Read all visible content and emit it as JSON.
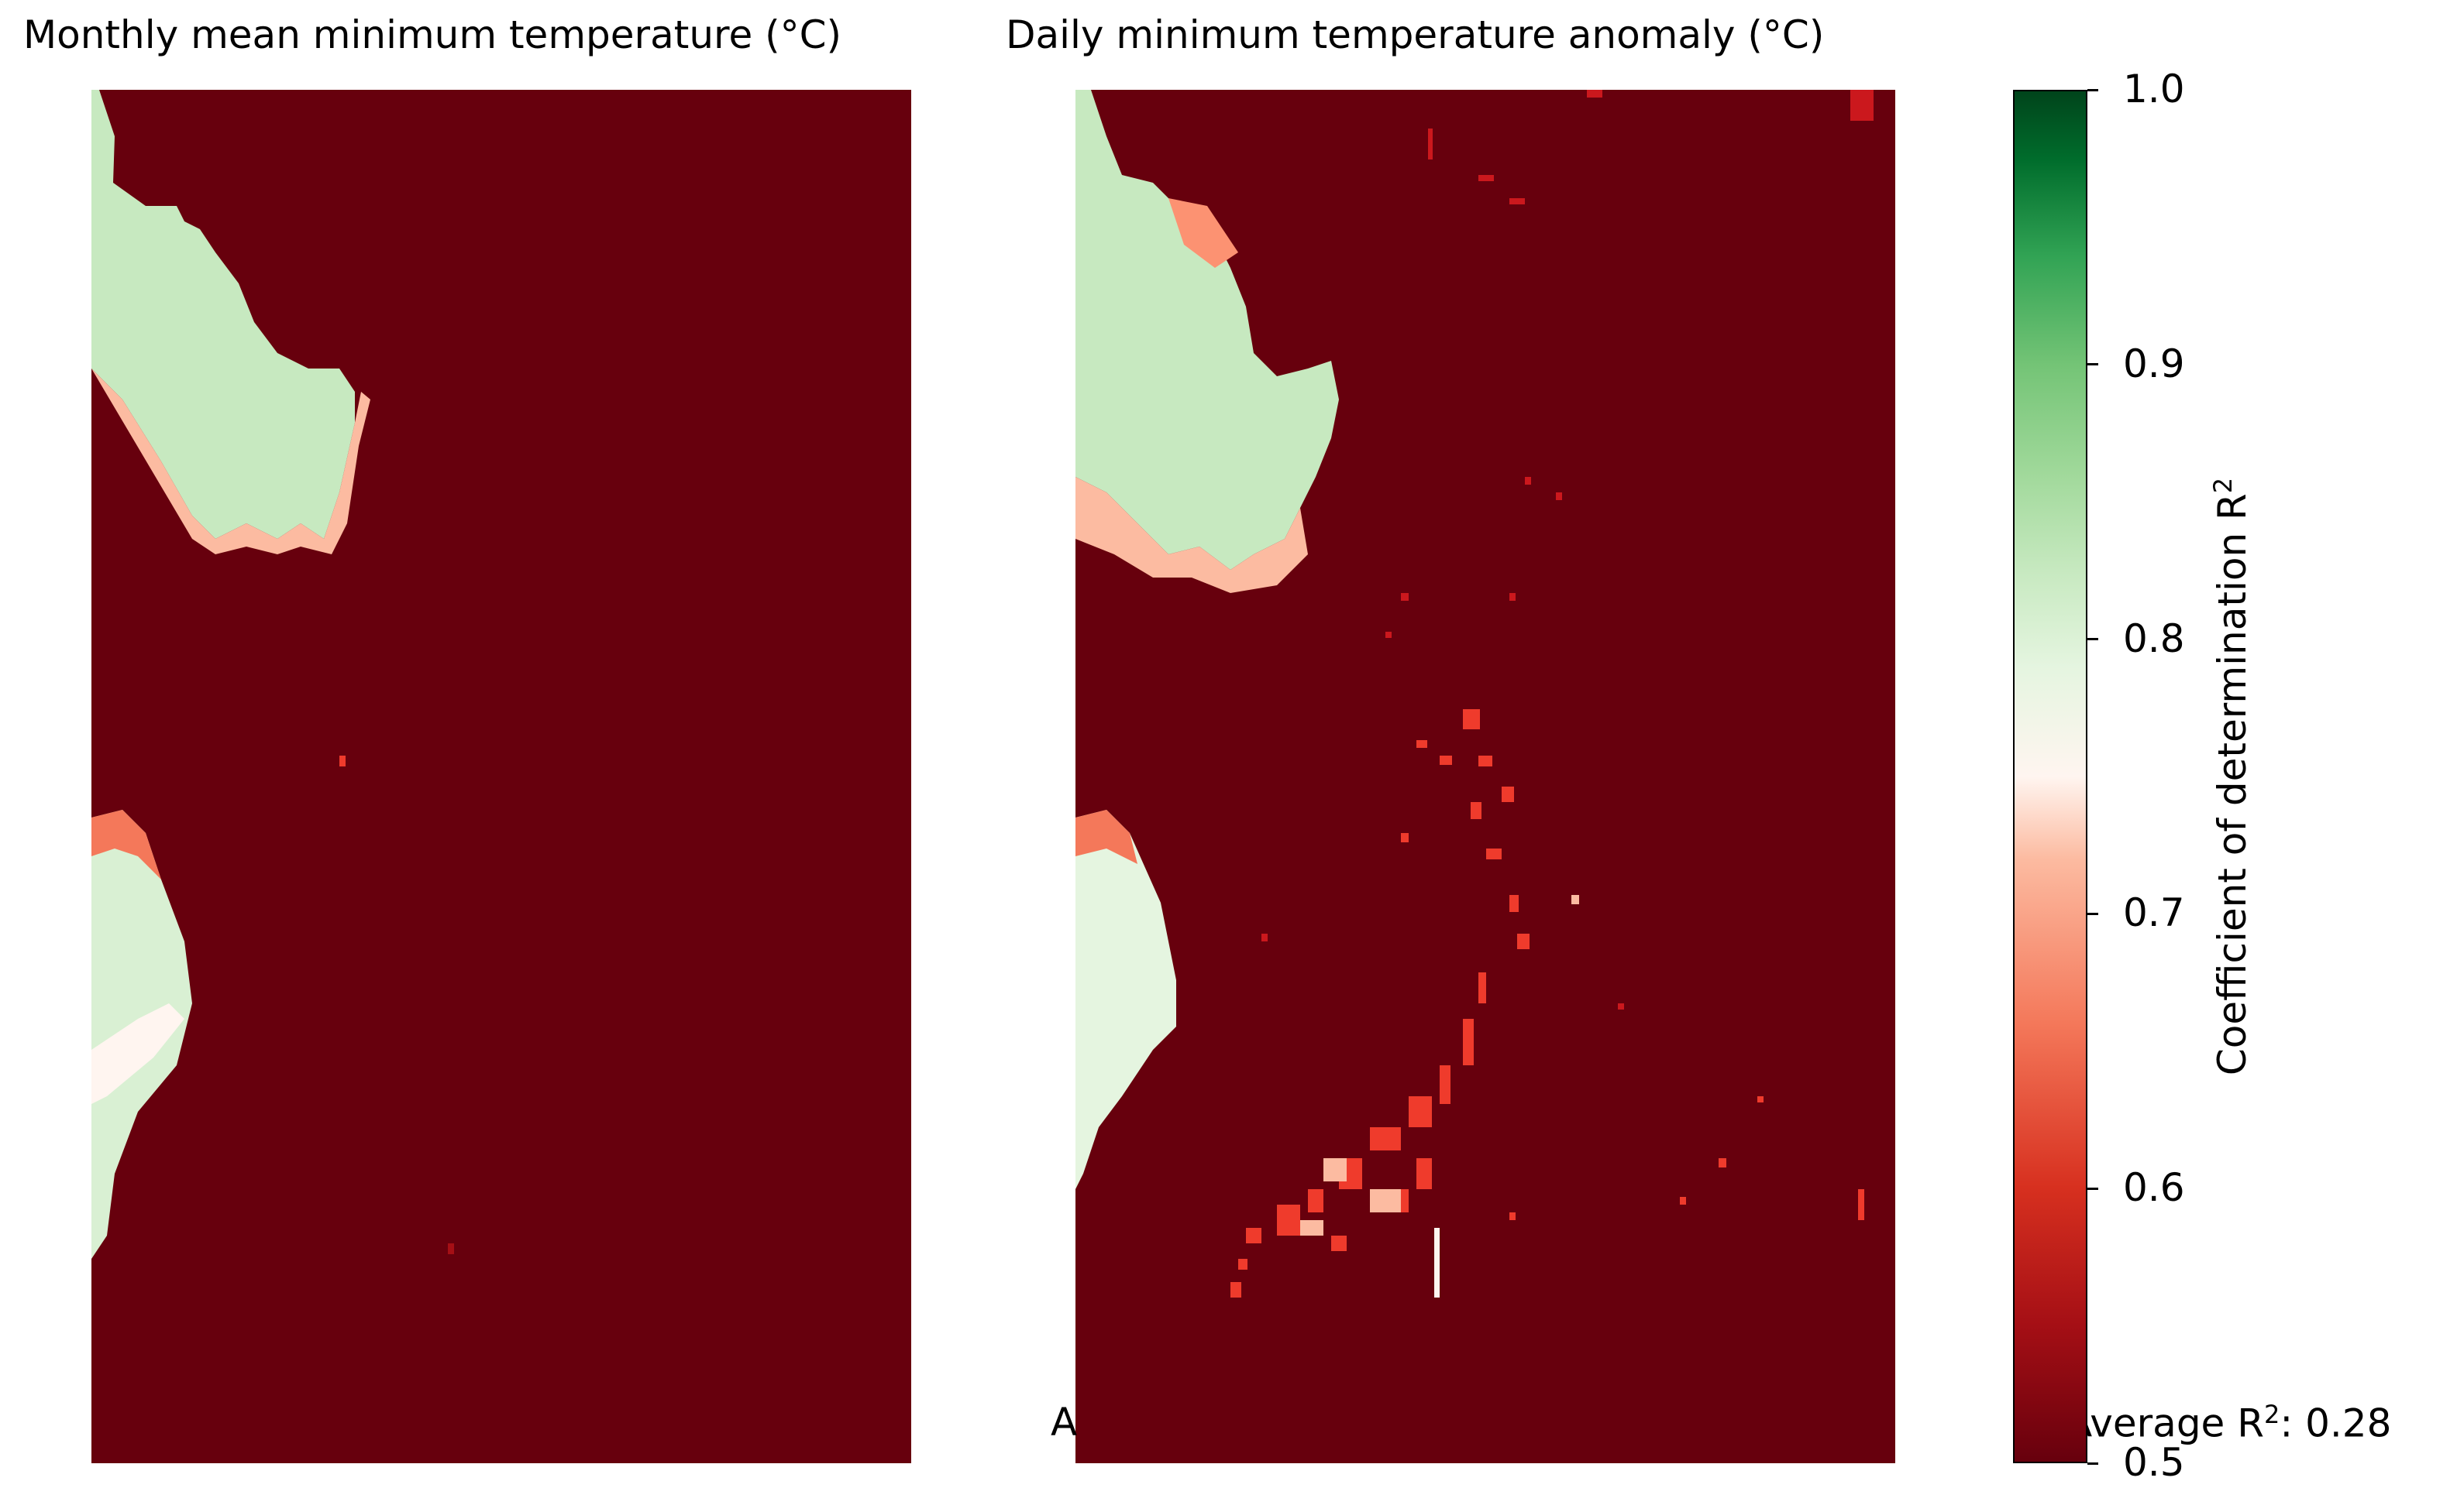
{
  "chart_data": [
    {
      "type": "heatmap",
      "title": "Monthly mean minimum temperature (°C)",
      "colorbar_shared": true
    },
    {
      "type": "heatmap",
      "title": "Daily minimum temperature anomaly (°C)",
      "colorbar_shared": true
    }
  ],
  "colorbar": {
    "label": "Coefficient of determination R",
    "label_sup": "2",
    "range": [
      0.5,
      1.0
    ],
    "ticks": [
      "1.0",
      "0.9",
      "0.8",
      "0.7",
      "0.6",
      "0.5"
    ],
    "colormap": "RdYlGn-like (red 0.5 → white 0.75 → green 1.0)",
    "colors": {
      "low": "#67000d",
      "mid": "#fff5f0",
      "high": "#00441b"
    }
  },
  "annotations": {
    "left_stub": "A",
    "right_prefix": "Average R",
    "right_sup": "2",
    "right_value": ": 0.28"
  }
}
